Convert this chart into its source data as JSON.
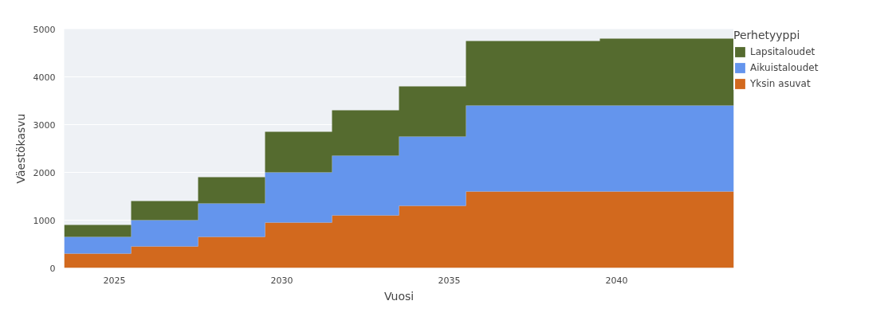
{
  "chart_data": {
    "type": "area",
    "stacked": true,
    "xlabel": "Vuosi",
    "ylabel": "Väestökasvu",
    "legend_title": "Perhetyyppi",
    "legend": "right",
    "grid": "y",
    "x": [
      2023.5,
      2025.5,
      2027.5,
      2029.5,
      2031.5,
      2033.5,
      2035.5,
      2037.5,
      2039.5,
      2041.5,
      2043.5
    ],
    "xlim": [
      2023.5,
      2043.5
    ],
    "xticks": [
      2025,
      2030,
      2035,
      2040
    ],
    "ylim": [
      0,
      5000
    ],
    "yticks": [
      0,
      1000,
      2000,
      3000,
      4000,
      5000
    ],
    "series": [
      {
        "name": "Yksin asuvat",
        "color": "#d2691e",
        "values": [
          300,
          450,
          650,
          950,
          1100,
          1300,
          1600,
          1600,
          1600,
          1600,
          1600
        ]
      },
      {
        "name": "Aikuistaloudet",
        "color": "#6495ed",
        "values": [
          350,
          550,
          700,
          1050,
          1250,
          1450,
          1800,
          1800,
          1800,
          1800,
          1800
        ]
      },
      {
        "name": "Lapsitaloudet",
        "color": "#556b2f",
        "values": [
          250,
          400,
          550,
          850,
          950,
          1050,
          1350,
          1350,
          1400,
          1400,
          1400
        ]
      }
    ]
  }
}
